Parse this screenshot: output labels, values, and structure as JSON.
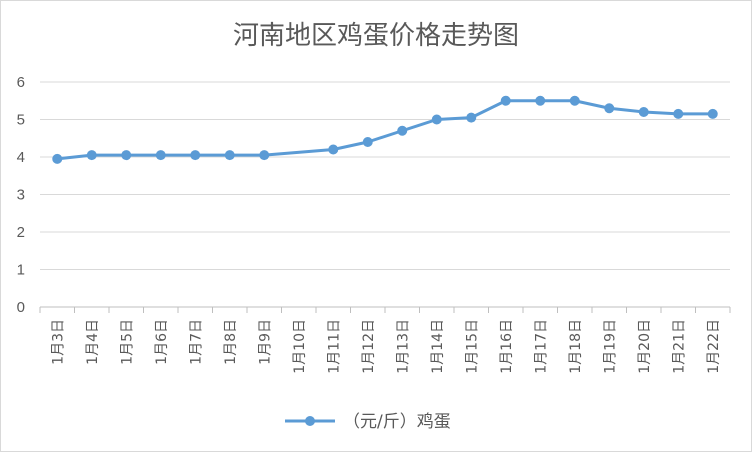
{
  "chart_data": {
    "type": "line",
    "title": "河南地区鸡蛋价格走势图",
    "categories": [
      "1月3日",
      "1月4日",
      "1月5日",
      "1月6日",
      "1月7日",
      "1月8日",
      "1月9日",
      "1月10日",
      "1月11日",
      "1月12日",
      "1月13日",
      "1月14日",
      "1月15日",
      "1月16日",
      "1月17日",
      "1月18日",
      "1月19日",
      "1月20日",
      "1月21日",
      "1月22日"
    ],
    "series": [
      {
        "name": "（元/斤）鸡蛋",
        "values": [
          3.95,
          4.05,
          4.05,
          4.05,
          4.05,
          4.05,
          4.05,
          null,
          4.2,
          4.4,
          4.7,
          5.0,
          5.05,
          5.5,
          5.5,
          5.5,
          5.3,
          5.2,
          5.15,
          5.15
        ],
        "color": "#5b9bd5"
      }
    ],
    "ylim": [
      0,
      6
    ],
    "yticks": [
      0,
      1,
      2,
      3,
      4,
      5,
      6
    ],
    "grid": true,
    "legend_position": "bottom",
    "xlabel": "",
    "ylabel": ""
  }
}
